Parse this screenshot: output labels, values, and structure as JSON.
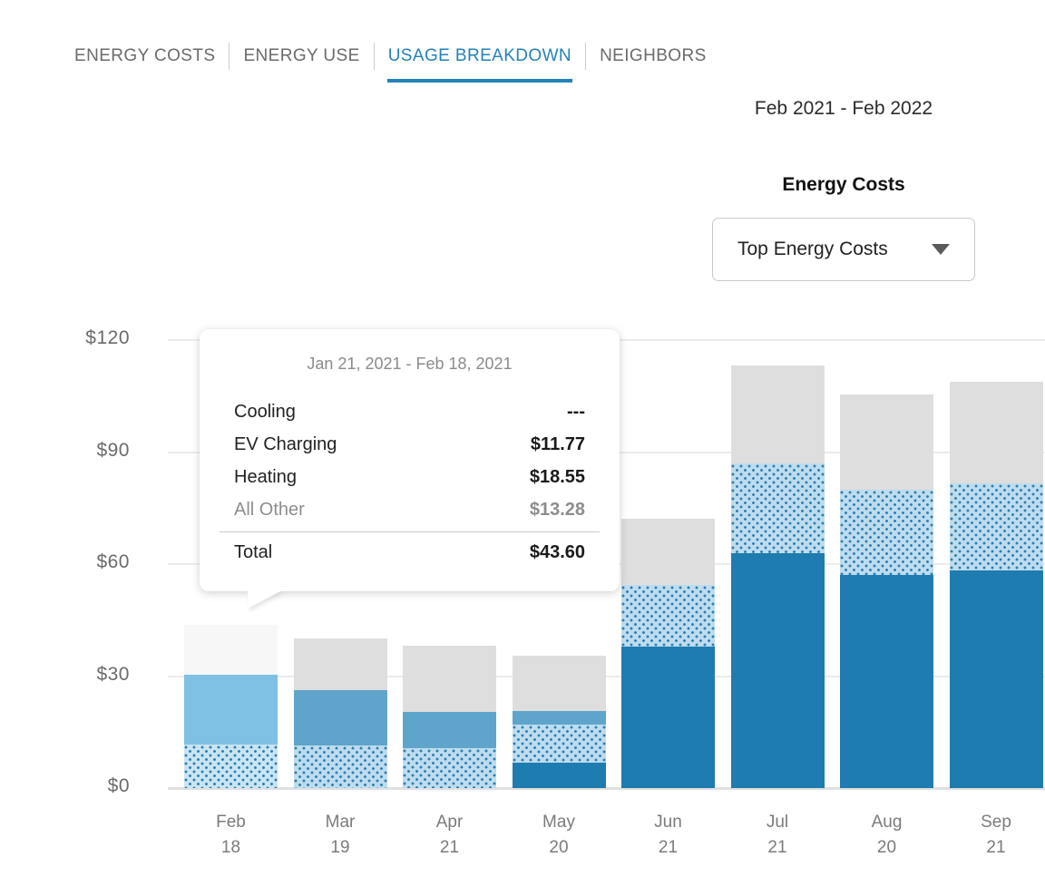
{
  "tabs": {
    "items": [
      {
        "label": "ENERGY COSTS",
        "active": false
      },
      {
        "label": "ENERGY USE",
        "active": false
      },
      {
        "label": "USAGE BREAKDOWN",
        "active": true
      },
      {
        "label": "NEIGHBORS",
        "active": false
      }
    ]
  },
  "date_range": "Feb 2021 - Feb 2022",
  "panel": {
    "title": "Energy Costs",
    "dropdown": {
      "selected": "Top Energy Costs",
      "caret_icon": "caret-down-icon"
    }
  },
  "tooltip": {
    "date_range": "Jan 21, 2021 - Feb 18, 2021",
    "rows": [
      {
        "label": "Cooling",
        "value": "---",
        "muted": false
      },
      {
        "label": "EV Charging",
        "value": "$11.77",
        "muted": false
      },
      {
        "label": "Heating",
        "value": "$18.55",
        "muted": false
      },
      {
        "label": "All Other",
        "value": "$13.28",
        "muted": true
      }
    ],
    "total_label": "Total",
    "total_value": "$43.60"
  },
  "chart_data": {
    "type": "bar",
    "stacked": true,
    "title": "Energy Costs",
    "xlabel": "",
    "ylabel": "",
    "ylim": [
      0,
      120
    ],
    "y_ticks": [
      "$0",
      "$30",
      "$60",
      "$90",
      "$120"
    ],
    "grid": true,
    "highlighted_bar_index": 0,
    "categories": [
      {
        "month": "Feb",
        "day": "18"
      },
      {
        "month": "Mar",
        "day": "19"
      },
      {
        "month": "Apr",
        "day": "21"
      },
      {
        "month": "May",
        "day": "20"
      },
      {
        "month": "Jun",
        "day": "21"
      },
      {
        "month": "Jul",
        "day": "21"
      },
      {
        "month": "Aug",
        "day": "20"
      },
      {
        "month": "Sep",
        "day": "21"
      }
    ],
    "series": [
      {
        "name": "Cooling",
        "key": "cooling",
        "pattern": "solid",
        "color": "#1e7cb0",
        "values": [
          0,
          0,
          0,
          6.9,
          37.9,
          62.9,
          57.0,
          58.3
        ]
      },
      {
        "name": "EV Charging",
        "key": "ev",
        "pattern": "dotted",
        "color": "#bedcee",
        "dot_color": "#2a7fb4",
        "values": [
          11.77,
          11.5,
          10.7,
          10.1,
          16.5,
          24.0,
          22.9,
          23.4
        ]
      },
      {
        "name": "Heating",
        "key": "heating",
        "pattern": "solid",
        "color": "#5fa5cb",
        "highlight_color": "#7fc1e4",
        "values": [
          18.55,
          14.7,
          9.7,
          3.6,
          0,
          0,
          0,
          0
        ]
      },
      {
        "name": "All Other",
        "key": "other",
        "pattern": "solid",
        "color": "#dedede",
        "highlight_color": "#f7f7f7",
        "values": [
          13.28,
          13.8,
          17.8,
          14.8,
          17.8,
          26.2,
          25.6,
          27.1
        ]
      }
    ],
    "totals": [
      43.6,
      40.0,
      38.2,
      35.4,
      72.2,
      113.1,
      105.5,
      108.8
    ],
    "accent_color": "#2382b9"
  }
}
